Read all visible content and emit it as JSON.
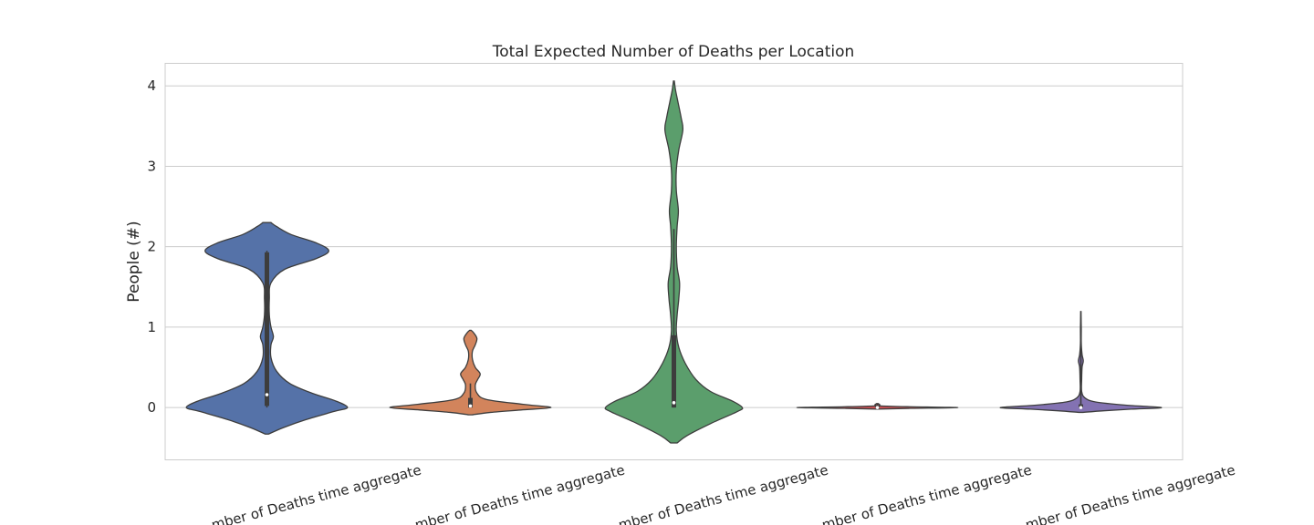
{
  "chart_data": {
    "type": "violin",
    "title": "Total Expected Number of Deaths per Location",
    "ylabel": "People (#)",
    "xlabel": "",
    "ylim": [
      -0.65,
      4.28
    ],
    "yticks": [
      0,
      1,
      2,
      3,
      4
    ],
    "grid": "horizontal",
    "categories": [
      "...mber of Deaths time aggregate",
      "...mber of Deaths time aggregate",
      "...mber of Deaths time aggregate",
      "...mber of Deaths time aggregate",
      "...mber of Deaths time aggregate"
    ],
    "series": [
      {
        "color": "#5572a8",
        "median": 0.16,
        "q1": 0.02,
        "q3": 1.93,
        "whisker_low": 0.0,
        "whisker_high": 1.95,
        "density": [
          [
            -0.33,
            0.02
          ],
          [
            -0.25,
            0.2
          ],
          [
            -0.15,
            0.48
          ],
          [
            -0.05,
            0.82
          ],
          [
            0.0,
            0.99
          ],
          [
            0.08,
            0.85
          ],
          [
            0.18,
            0.55
          ],
          [
            0.3,
            0.28
          ],
          [
            0.45,
            0.12
          ],
          [
            0.62,
            0.05
          ],
          [
            0.78,
            0.05
          ],
          [
            0.88,
            0.08
          ],
          [
            1.0,
            0.05
          ],
          [
            1.15,
            0.03
          ],
          [
            1.35,
            0.03
          ],
          [
            1.55,
            0.05
          ],
          [
            1.72,
            0.22
          ],
          [
            1.85,
            0.6
          ],
          [
            1.95,
            0.76
          ],
          [
            2.05,
            0.6
          ],
          [
            2.15,
            0.3
          ],
          [
            2.25,
            0.12
          ],
          [
            2.3,
            0.05
          ]
        ]
      },
      {
        "color": "#d2845c",
        "median": 0.02,
        "q1": 0.0,
        "q3": 0.12,
        "whisker_low": 0.0,
        "whisker_high": 0.3,
        "density": [
          [
            -0.09,
            0.02
          ],
          [
            -0.06,
            0.25
          ],
          [
            -0.03,
            0.62
          ],
          [
            0.0,
            0.99
          ],
          [
            0.04,
            0.65
          ],
          [
            0.1,
            0.2
          ],
          [
            0.18,
            0.08
          ],
          [
            0.28,
            0.06
          ],
          [
            0.35,
            0.09
          ],
          [
            0.42,
            0.12
          ],
          [
            0.5,
            0.06
          ],
          [
            0.6,
            0.025
          ],
          [
            0.7,
            0.025
          ],
          [
            0.78,
            0.06
          ],
          [
            0.86,
            0.08
          ],
          [
            0.93,
            0.04
          ],
          [
            0.96,
            0.01
          ]
        ]
      },
      {
        "color": "#5b9e6c",
        "median": 0.06,
        "q1": 0.0,
        "q3": 0.9,
        "whisker_low": 0.0,
        "whisker_high": 2.22,
        "density": [
          [
            -0.44,
            0.04
          ],
          [
            -0.35,
            0.16
          ],
          [
            -0.2,
            0.45
          ],
          [
            -0.05,
            0.78
          ],
          [
            0.0,
            0.84
          ],
          [
            0.08,
            0.72
          ],
          [
            0.2,
            0.45
          ],
          [
            0.35,
            0.27
          ],
          [
            0.55,
            0.14
          ],
          [
            0.75,
            0.06
          ],
          [
            0.95,
            0.03
          ],
          [
            1.15,
            0.04
          ],
          [
            1.35,
            0.06
          ],
          [
            1.55,
            0.07
          ],
          [
            1.75,
            0.04
          ],
          [
            2.0,
            0.03
          ],
          [
            2.25,
            0.04
          ],
          [
            2.45,
            0.055
          ],
          [
            2.7,
            0.03
          ],
          [
            2.95,
            0.03
          ],
          [
            3.2,
            0.06
          ],
          [
            3.45,
            0.11
          ],
          [
            3.6,
            0.09
          ],
          [
            3.8,
            0.05
          ],
          [
            3.95,
            0.02
          ],
          [
            4.06,
            0.005
          ]
        ]
      },
      {
        "color": "#c44e52",
        "median": 0.0,
        "q1": 0.0,
        "q3": 0.02,
        "whisker_low": 0.0,
        "whisker_high": 0.05,
        "density": [
          [
            -0.02,
            0.0
          ],
          [
            -0.01,
            0.4
          ],
          [
            0.0,
            0.99
          ],
          [
            0.01,
            0.4
          ],
          [
            0.02,
            0.05
          ],
          [
            0.035,
            0.03
          ],
          [
            0.05,
            0.01
          ]
        ]
      },
      {
        "color": "#8372b2",
        "median": 0.0,
        "q1": 0.0,
        "q3": 0.04,
        "whisker_low": 0.0,
        "whisker_high": 1.2,
        "density": [
          [
            -0.06,
            0.02
          ],
          [
            -0.04,
            0.28
          ],
          [
            -0.02,
            0.62
          ],
          [
            0.0,
            0.99
          ],
          [
            0.03,
            0.55
          ],
          [
            0.07,
            0.18
          ],
          [
            0.12,
            0.05
          ],
          [
            0.2,
            0.01
          ],
          [
            0.35,
            0.01
          ],
          [
            0.5,
            0.015
          ],
          [
            0.58,
            0.03
          ],
          [
            0.66,
            0.015
          ],
          [
            0.8,
            0.005
          ],
          [
            1.0,
            0.005
          ],
          [
            1.2,
            0.0
          ]
        ]
      }
    ]
  }
}
